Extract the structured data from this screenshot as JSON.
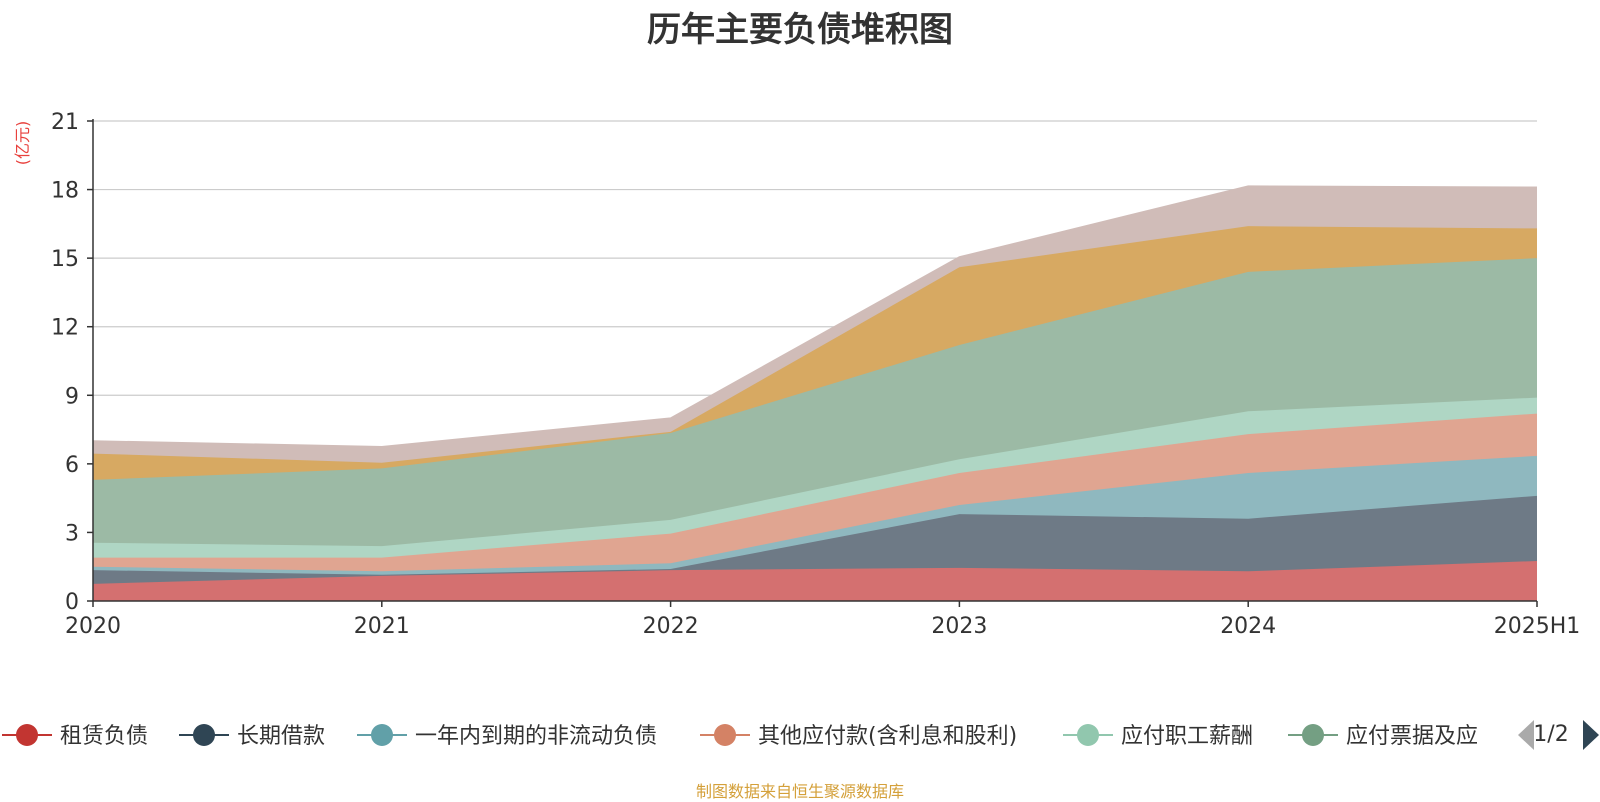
{
  "title": "历年主要负债堆积图",
  "source_note": "制图数据来自恒生聚源数据库",
  "colors": {
    "title": "#333333",
    "ylabel": "#e8413d",
    "source_note": "#d4a03a",
    "axis": "#333333",
    "grid": "#cccccc"
  },
  "legend": {
    "page_indicator": "1/2",
    "prev_arrow_icon": "triangle-left",
    "next_arrow_icon": "triangle-right"
  },
  "chart_data": {
    "type": "area",
    "stacked": true,
    "ylabel": "(亿元)",
    "xlabel": "",
    "ylim": [
      0,
      21
    ],
    "y_ticks": [
      0,
      3,
      6,
      9,
      12,
      15,
      18,
      21
    ],
    "grid": true,
    "legend_position": "bottom",
    "categories": [
      "2020",
      "2021",
      "2022",
      "2023",
      "2024",
      "2025H1"
    ],
    "series": [
      {
        "name": "租赁负债",
        "color": "#c23531",
        "area_color": "#d47070",
        "values": [
          0.75,
          1.1,
          1.35,
          1.45,
          1.3,
          1.75
        ]
      },
      {
        "name": "长期借款",
        "color": "#2f4554",
        "area_color": "#6e7a86",
        "values": [
          0.6,
          0.05,
          0.05,
          2.35,
          2.3,
          2.85
        ]
      },
      {
        "name": "一年内到期的非流动负债",
        "color": "#61a0a8",
        "area_color": "#8fb8bf",
        "values": [
          0.15,
          0.15,
          0.25,
          0.4,
          2.0,
          1.75
        ]
      },
      {
        "name": "其他应付款(含利息和股利)",
        "color": "#d48265",
        "area_color": "#e0a591",
        "values": [
          0.4,
          0.6,
          1.3,
          1.4,
          1.7,
          1.85
        ]
      },
      {
        "name": "应付职工薪酬",
        "color": "#91c7ae",
        "area_color": "#afd6c4",
        "values": [
          0.65,
          0.5,
          0.6,
          0.6,
          1.0,
          0.7
        ]
      },
      {
        "name": "应付票据及应付账款",
        "color": "#749f83",
        "area_color": "#9cbaa5",
        "values": [
          2.75,
          3.4,
          3.8,
          5.0,
          6.1,
          6.1
        ]
      },
      {
        "name": "",
        "color": "#ca8622",
        "area_color": "#d7a962",
        "values": [
          1.15,
          0.25,
          0.05,
          3.4,
          2.0,
          1.3
        ]
      },
      {
        "name": "",
        "color": "#bda29a",
        "area_color": "#d0bcb8",
        "values": [
          0.55,
          0.7,
          0.6,
          0.45,
          1.75,
          1.8
        ]
      }
    ]
  }
}
